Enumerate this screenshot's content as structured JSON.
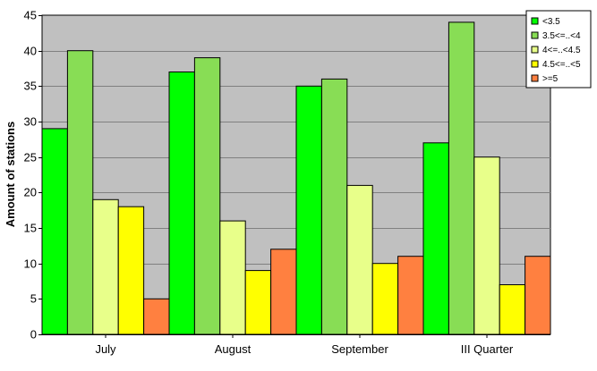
{
  "chart_data": {
    "type": "bar",
    "title": "",
    "xlabel": "",
    "ylabel": "Amount of stations",
    "ylim": [
      0,
      45
    ],
    "yticks": [
      0,
      5,
      10,
      15,
      20,
      25,
      30,
      35,
      40,
      45
    ],
    "categories": [
      "July",
      "August",
      "September",
      "III Quarter"
    ],
    "grid": true,
    "legend_position": "top-right",
    "plot_background": "#c0c0c0",
    "series": [
      {
        "name": "<3.5",
        "color": "#00ff00",
        "values": [
          29,
          37,
          35,
          27
        ]
      },
      {
        "name": "3.5<=..<4",
        "color": "#88dd55",
        "values": [
          40,
          39,
          36,
          44
        ]
      },
      {
        "name": "4<=..<4.5",
        "color": "#e8ff8a",
        "values": [
          19,
          16,
          21,
          25
        ]
      },
      {
        "name": "4.5<=..<5",
        "color": "#ffff00",
        "values": [
          18,
          9,
          10,
          7
        ]
      },
      {
        "name": ">=5",
        "color": "#ff8040",
        "values": [
          5,
          12,
          11,
          11
        ]
      }
    ]
  }
}
